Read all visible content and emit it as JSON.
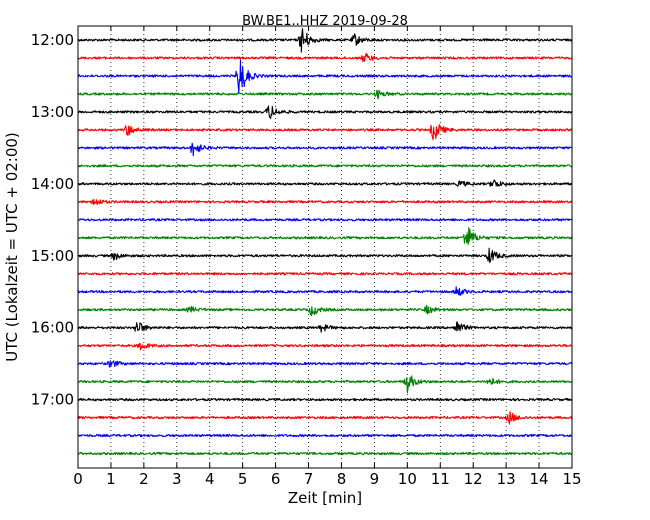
{
  "chart_data": {
    "type": "line",
    "title": "BW.BE1..HHZ 2019-09-28",
    "xlabel": "Zeit  [min]",
    "ylabel": "UTC (Lokalzeit = UTC + 02:00)",
    "xlim": [
      0,
      15
    ],
    "x_ticks": [
      "0",
      "1",
      "2",
      "3",
      "4",
      "5",
      "6",
      "7",
      "8",
      "9",
      "10",
      "11",
      "12",
      "13",
      "14",
      "15"
    ],
    "y_tick_labels": [
      "12:00",
      "13:00",
      "14:00",
      "15:00",
      "16:00",
      "17:00"
    ],
    "trace_interval_minutes": 15,
    "trace_colors": [
      "#000000",
      "#ff0000",
      "#0000ff",
      "#008000"
    ],
    "traces": [
      {
        "start": "12:00",
        "events": [
          {
            "t": 6.8,
            "amp": 14
          },
          {
            "t": 8.4,
            "amp": 6
          }
        ]
      },
      {
        "start": "12:15",
        "events": [
          {
            "t": 8.7,
            "amp": 5
          }
        ]
      },
      {
        "start": "12:30",
        "events": [
          {
            "t": 4.9,
            "amp": 22
          }
        ]
      },
      {
        "start": "12:45",
        "events": [
          {
            "t": 9.1,
            "amp": 4
          }
        ]
      },
      {
        "start": "13:00",
        "events": [
          {
            "t": 5.8,
            "amp": 8
          }
        ]
      },
      {
        "start": "13:15",
        "events": [
          {
            "t": 1.5,
            "amp": 6
          },
          {
            "t": 10.8,
            "amp": 12
          }
        ]
      },
      {
        "start": "13:30",
        "events": [
          {
            "t": 3.5,
            "amp": 8
          }
        ]
      },
      {
        "start": "13:45",
        "events": []
      },
      {
        "start": "14:00",
        "events": [
          {
            "t": 11.6,
            "amp": 3
          },
          {
            "t": 12.6,
            "amp": 5
          }
        ]
      },
      {
        "start": "14:15",
        "events": [
          {
            "t": 0.5,
            "amp": 4
          }
        ]
      },
      {
        "start": "14:30",
        "events": []
      },
      {
        "start": "14:45",
        "events": [
          {
            "t": 11.8,
            "amp": 14
          }
        ]
      },
      {
        "start": "15:00",
        "events": [
          {
            "t": 1.1,
            "amp": 4
          },
          {
            "t": 12.5,
            "amp": 8
          }
        ]
      },
      {
        "start": "15:15",
        "events": []
      },
      {
        "start": "15:30",
        "events": [
          {
            "t": 11.5,
            "amp": 5
          }
        ]
      },
      {
        "start": "15:45",
        "events": [
          {
            "t": 3.4,
            "amp": 3
          },
          {
            "t": 7.1,
            "amp": 6
          },
          {
            "t": 10.6,
            "amp": 4
          }
        ]
      },
      {
        "start": "16:00",
        "events": [
          {
            "t": 1.8,
            "amp": 7
          },
          {
            "t": 7.4,
            "amp": 4
          },
          {
            "t": 11.5,
            "amp": 7
          }
        ]
      },
      {
        "start": "16:15",
        "events": [
          {
            "t": 1.9,
            "amp": 4
          }
        ]
      },
      {
        "start": "16:30",
        "events": [
          {
            "t": 1.0,
            "amp": 4
          }
        ]
      },
      {
        "start": "16:45",
        "events": [
          {
            "t": 10.0,
            "amp": 10
          },
          {
            "t": 12.5,
            "amp": 4
          }
        ]
      },
      {
        "start": "17:00",
        "events": []
      },
      {
        "start": "17:15",
        "events": [
          {
            "t": 13.1,
            "amp": 6
          }
        ]
      },
      {
        "start": "17:30",
        "events": []
      },
      {
        "start": "17:45",
        "events": []
      }
    ]
  }
}
